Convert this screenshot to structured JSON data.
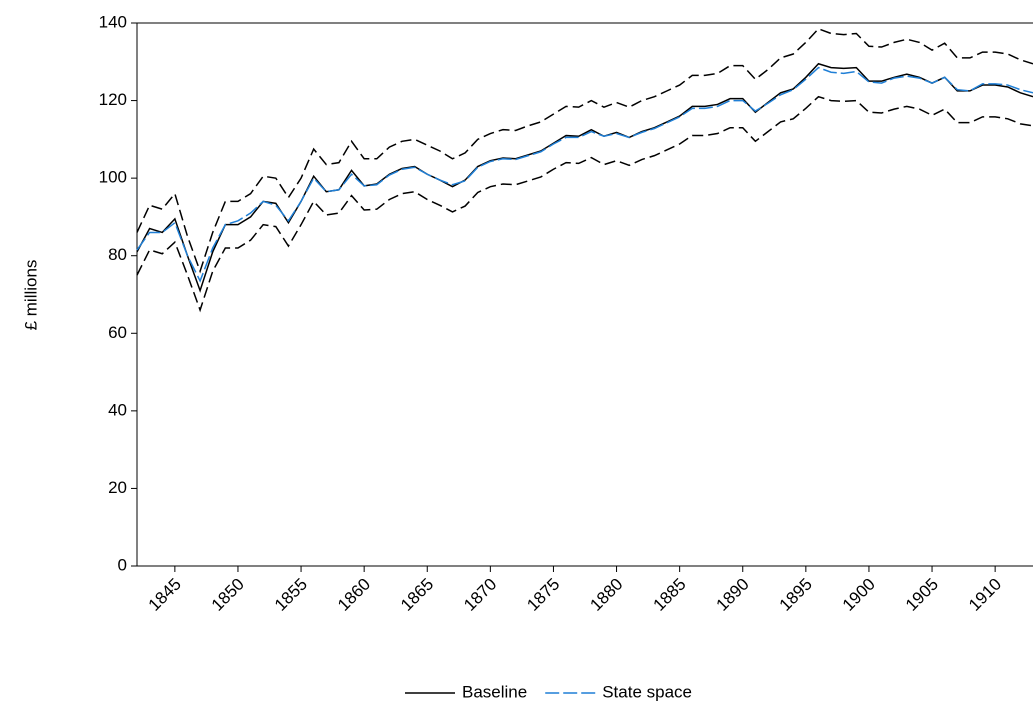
{
  "chart_data": {
    "type": "line",
    "y_label": "£ millions",
    "x": [
      1842,
      1843,
      1844,
      1845,
      1846,
      1847,
      1848,
      1849,
      1850,
      1851,
      1852,
      1853,
      1854,
      1855,
      1856,
      1857,
      1858,
      1859,
      1860,
      1861,
      1862,
      1863,
      1864,
      1865,
      1866,
      1867,
      1868,
      1869,
      1870,
      1871,
      1872,
      1873,
      1874,
      1875,
      1876,
      1877,
      1878,
      1879,
      1880,
      1881,
      1882,
      1883,
      1884,
      1885,
      1886,
      1887,
      1888,
      1889,
      1890,
      1891,
      1892,
      1893,
      1894,
      1895,
      1896,
      1897,
      1898,
      1899,
      1900,
      1901,
      1902,
      1903,
      1904,
      1905,
      1906,
      1907,
      1908,
      1909,
      1910,
      1911,
      1912,
      1913
    ],
    "xlim": [
      1842,
      1913
    ],
    "xticks": [
      1845,
      1850,
      1855,
      1860,
      1865,
      1870,
      1875,
      1880,
      1885,
      1890,
      1895,
      1900,
      1905,
      1910
    ],
    "ylim": [
      0,
      140
    ],
    "yticks": [
      0,
      20,
      40,
      60,
      80,
      100,
      120,
      140
    ],
    "series": [
      {
        "name": "Baseline",
        "color": "#000000",
        "dash": "none",
        "values": [
          81,
          87,
          86,
          89.5,
          80,
          71,
          81,
          88,
          88,
          90,
          94,
          93.5,
          88.5,
          94,
          100.5,
          96.5,
          97,
          102,
          98,
          98.5,
          101,
          102.5,
          103,
          101,
          99.5,
          97.8,
          99.5,
          103,
          104.5,
          105.2,
          105,
          106,
          107,
          109,
          111,
          110.8,
          112.5,
          110.8,
          111.8,
          110.5,
          112,
          113,
          114.5,
          116,
          118.5,
          118.5,
          119,
          120.5,
          120.5,
          117,
          119.5,
          122,
          123,
          126,
          129.5,
          128.5,
          128.3,
          128.5,
          125,
          125,
          126,
          126.8,
          126,
          124.5,
          126,
          122.5,
          122.5,
          124,
          124,
          123.5,
          122,
          121
        ]
      },
      {
        "name": "State space",
        "color": "#1f7fd6",
        "dash": "14,4",
        "values": [
          81.5,
          86,
          86,
          88.5,
          80,
          73.5,
          82,
          88,
          89,
          91,
          94,
          93,
          89,
          94,
          100,
          96.5,
          97,
          101,
          98,
          98.3,
          100.8,
          102.3,
          102.8,
          101,
          99.5,
          98.3,
          99.3,
          102.8,
          104.3,
          105,
          104.8,
          105.8,
          106.8,
          108.8,
          110.5,
          110.5,
          112,
          110.8,
          111.5,
          110.5,
          111.8,
          112.8,
          114.3,
          115.8,
          118,
          118,
          118.5,
          120,
          120,
          117.3,
          119.3,
          121.5,
          122.8,
          125.5,
          128.5,
          127.3,
          127,
          127.5,
          124.8,
          124.5,
          125.8,
          126.3,
          125.8,
          124.5,
          126,
          122.8,
          122.5,
          124.3,
          124.3,
          124,
          122.8,
          122
        ]
      },
      {
        "color": "#000000",
        "dash": "11,5",
        "values": [
          86,
          93,
          92,
          96,
          85,
          76,
          86,
          94,
          94,
          96,
          100.5,
          100,
          95,
          100,
          107.5,
          103.5,
          104,
          109.5,
          105,
          105,
          108,
          109.5,
          110,
          108.5,
          107,
          105,
          106.5,
          110,
          111.5,
          112.5,
          112.3,
          113.5,
          114.5,
          116.5,
          118.5,
          118.3,
          120,
          118.3,
          119.5,
          118.3,
          120,
          121,
          122.5,
          124,
          126.5,
          126.5,
          127,
          129,
          129,
          125.5,
          128,
          131,
          132,
          135,
          138.5,
          137.3,
          137,
          137.3,
          134,
          133.8,
          135,
          135.8,
          135,
          133,
          134.8,
          131,
          131,
          132.5,
          132.5,
          132,
          130.5,
          129.5
        ]
      },
      {
        "color": "#000000",
        "dash": "11,5",
        "values": [
          75,
          81.5,
          80.5,
          83.5,
          75,
          66,
          76,
          82,
          82,
          84,
          88,
          87.5,
          82.5,
          88,
          94,
          90.5,
          91,
          95.5,
          91.8,
          92,
          94.5,
          96,
          96.5,
          94.5,
          93,
          91.3,
          92.8,
          96.3,
          97.8,
          98.5,
          98.3,
          99.3,
          100.3,
          102.3,
          104,
          103.8,
          105.3,
          103.5,
          104.5,
          103.3,
          104.8,
          105.8,
          107.3,
          108.8,
          111,
          111,
          111.5,
          113,
          113,
          109.5,
          112,
          114.5,
          115.3,
          118,
          121,
          120,
          119.8,
          120,
          117,
          116.8,
          117.8,
          118.5,
          117.8,
          116.2,
          117.8,
          114.3,
          114.3,
          115.8,
          115.8,
          115.3,
          114,
          113.5
        ]
      }
    ]
  }
}
